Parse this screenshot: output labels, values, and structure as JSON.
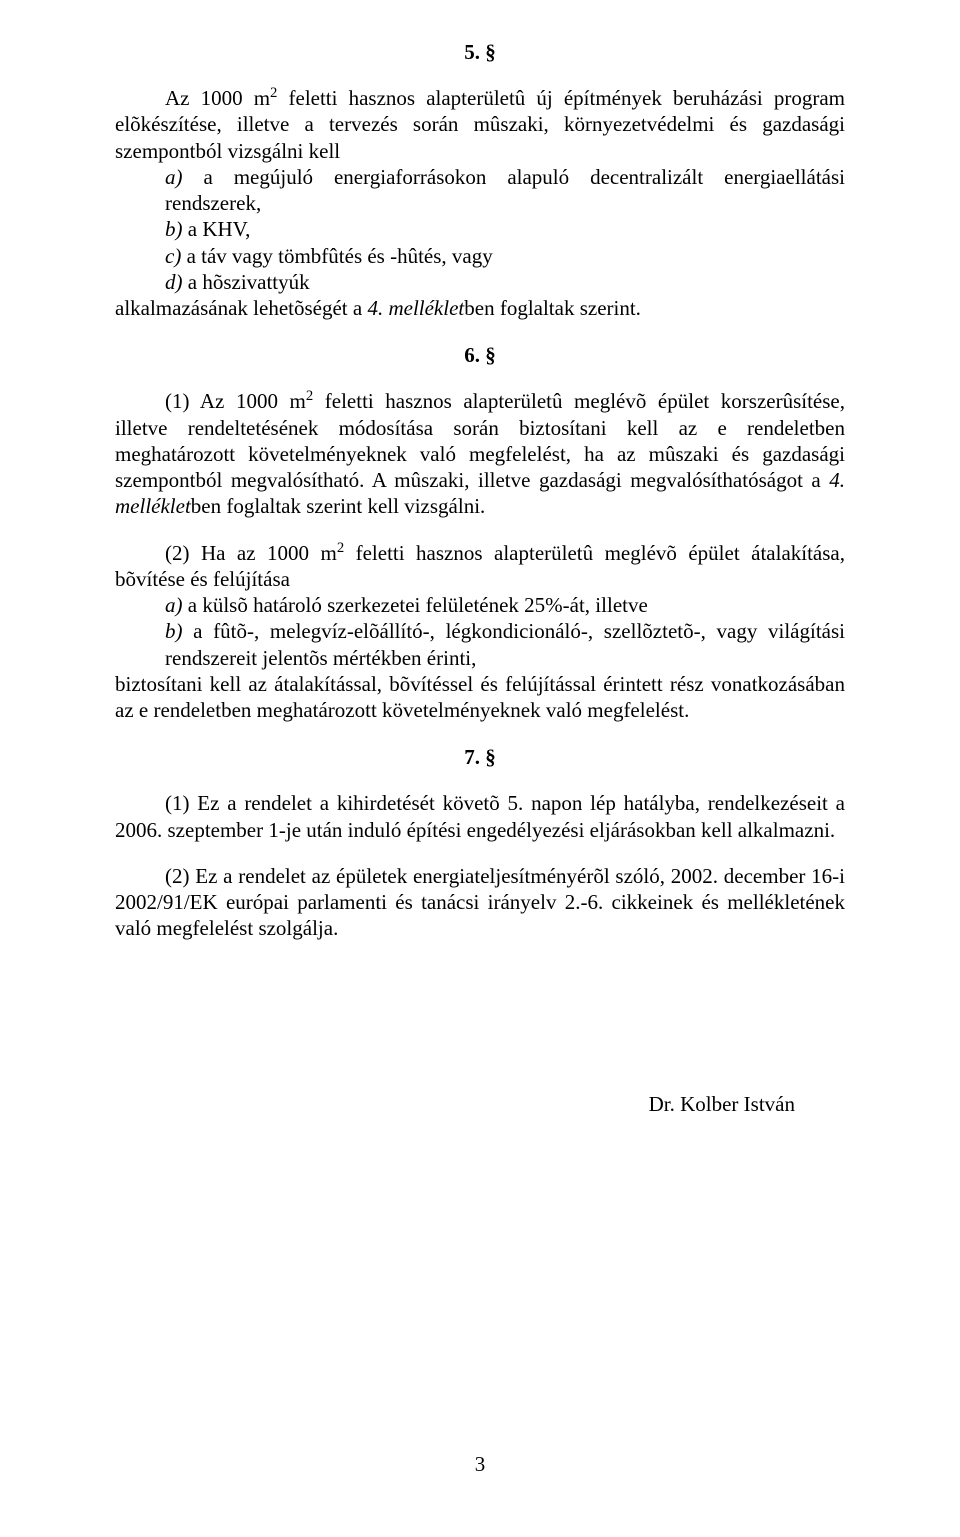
{
  "section5": {
    "title": "5. §",
    "intro": "Az 1000 m2 feletti hasznos alapterületû új építmények beruházási program elõkészítése, illetve a tervezés során mûszaki, környezetvédelmi és gazdasági szempontból vizsgálni kell",
    "a_label": "a)",
    "a_text": " a megújuló energiaforrásokon alapuló decentralizált energiaellátási rendszerek,",
    "b_label": "b)",
    "b_text": " a KHV,",
    "c_label": "c)",
    "c_text": " a táv vagy tömbfûtés és -hûtés, vagy",
    "d_label": "d)",
    "d_text": " a hõszivattyúk",
    "tail_pre": "alkalmazásának lehetõségét a ",
    "tail_it": "4. melléklet",
    "tail_post": "ben foglaltak szerint."
  },
  "section6": {
    "title": "6. §",
    "p1_pre": "(1) Az 1000 m2 feletti hasznos alapterületû meglévõ épület korszerûsítése, illetve rendeltetésének módosítása során biztosítani kell az e rendeletben meghatározott követelményeknek való megfelelést, ha az mûszaki és gazdasági szempontból megvalósítható. A mûszaki, illetve gazdasági megvalósíthatóságot a ",
    "p1_it": "4. melléklet",
    "p1_post": "ben foglaltak szerint kell vizsgálni.",
    "p2_intro": "(2) Ha az 1000 m2 feletti hasznos alapterületû meglévõ épület átalakítása, bõvítése és felújítása",
    "p2_a_label": "a)",
    "p2_a_text": " a külsõ határoló szerkezetei felületének 25%-át, illetve",
    "p2_b_label": "b)",
    "p2_b_text": " a fûtõ-, melegvíz-elõállító-, légkondicionáló-, szellõztetõ-, vagy világítási rendszereit jelentõs mértékben érinti,",
    "p2_tail": "biztosítani kell az átalakítással, bõvítéssel és felújítással érintett rész vonatkozásában az e rendeletben meghatározott követelményeknek való megfelelést."
  },
  "section7": {
    "title": "7. §",
    "p1": "(1) Ez a rendelet a kihirdetését követõ 5. napon lép hatályba, rendelkezéseit a 2006. szeptember 1-je után induló építési engedélyezési eljárásokban kell alkalmazni.",
    "p2": "(2) Ez a rendelet az épületek energiateljesítményérõl szóló, 2002. december 16-i 2002/91/EK európai parlamenti és tanácsi irányelv 2.-6. cikkeinek és mellékletének való megfelelést szolgálja."
  },
  "signature": "Dr. Kolber István",
  "page_number": "3"
}
